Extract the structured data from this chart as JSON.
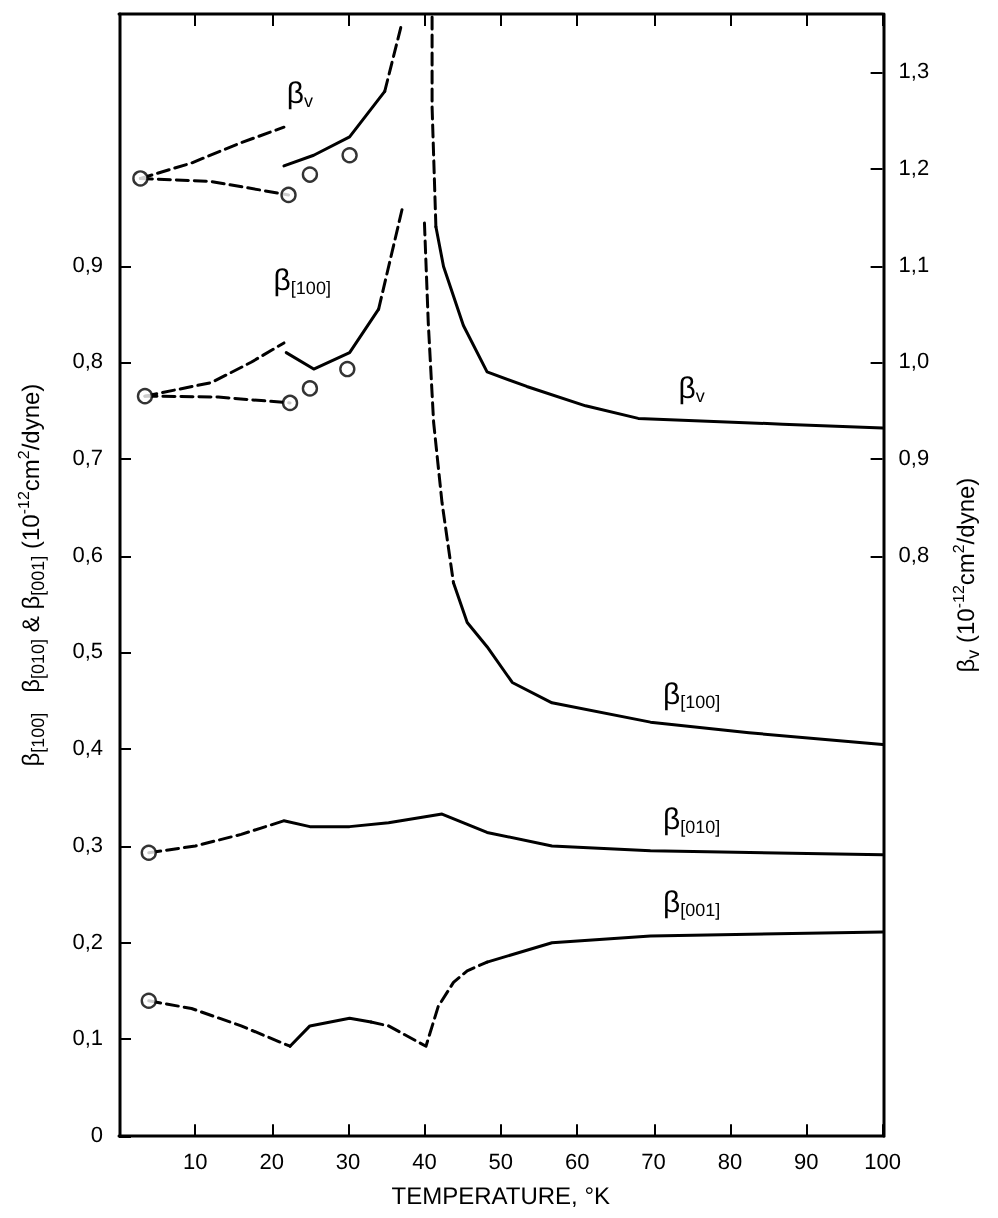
{
  "chart_data": {
    "type": "line",
    "xlabel": "TEMPERATURE, °K",
    "ylabel": "β$_{[100]}$   β$_{[010]}$ & β$_{[001]}$ (10$^{-12}$cm$^{2}$/dyne)",
    "y2label": "β$_{v}$ (10$^{-12}$cm$^{2}$/dyne)",
    "xlim": [
      0,
      100
    ],
    "xticks": [
      10,
      20,
      30,
      40,
      50,
      60,
      70,
      80,
      90,
      100
    ],
    "ylim": [
      0,
      1.16
    ],
    "yticks": [
      0,
      {
        "value": 0.1,
        "label": "0,1"
      },
      {
        "value": 0.2,
        "label": "0,2"
      },
      {
        "value": 0.3,
        "label": "0,3"
      },
      {
        "value": 0.4,
        "label": "0,4"
      },
      {
        "value": 0.5,
        "label": "0,5"
      },
      {
        "value": 0.6,
        "label": "0,6"
      },
      {
        "value": 0.7,
        "label": "0,7"
      },
      {
        "value": 0.8,
        "label": "0,8"
      },
      {
        "value": 0.9,
        "label": "0,9"
      }
    ],
    "y2lim": [
      0.2,
      1.36
    ],
    "y2ticks": [
      {
        "value": 0.8,
        "label": "0,8"
      },
      {
        "value": 0.9,
        "label": "0,9"
      },
      {
        "value": 1.0,
        "label": "1,0"
      },
      {
        "value": 1.1,
        "label": "1,1"
      },
      {
        "value": 1.2,
        "label": "1,2"
      },
      {
        "value": 1.3,
        "label": "1,3"
      }
    ],
    "series": [
      {
        "axis": "y2",
        "color": "#000000",
        "line_style": "dashed",
        "x": [
          2.8,
          9.5,
          16,
          21.6
        ],
        "values": [
          1.19,
          1.206,
          1.227,
          1.243
        ]
      },
      {
        "axis": "y2",
        "color": "#000000",
        "line_style": "dashed",
        "x": [
          2.8,
          12,
          22.2
        ],
        "values": [
          1.19,
          1.187,
          1.173
        ]
      },
      {
        "name": "β$_{v}$",
        "axis": "y2",
        "color": "#000000",
        "line_style": "solid",
        "x": [
          21.6,
          25.5,
          30.2,
          34.8
        ],
        "values": [
          1.203,
          1.214,
          1.233,
          1.28
        ]
      },
      {
        "axis": "y2",
        "color": "#000000",
        "line_style": "dashed",
        "x": [
          34.8,
          36.9
        ],
        "values": [
          1.28,
          1.346
        ]
      },
      {
        "axis": "y2",
        "color": "#000000",
        "line_style": "dashed",
        "x": [
          41,
          41,
          41.5
        ],
        "values": [
          1.357,
          1.264,
          1.14
        ]
      },
      {
        "name": "β$_{v}$",
        "axis": "y2",
        "color": "#000000",
        "line_style": "solid",
        "x": [
          41.5,
          42.5,
          45.1,
          48.2,
          53.4,
          61.1,
          68,
          86.9,
          100
        ],
        "values": [
          1.14,
          1.099,
          1.038,
          0.99,
          0.975,
          0.955,
          0.942,
          0.936,
          0.932
        ]
      },
      {
        "type": "scatter",
        "axis": "y2",
        "color": "#000000",
        "marker": "circle",
        "x": [
          2.8,
          22.2,
          25,
          30.2
        ],
        "values": [
          1.19,
          1.173,
          1.194,
          1.214
        ]
      },
      {
        "color": "#000000",
        "line_style": "dashed",
        "x": [
          3.4,
          12.1,
          17.3,
          21.6
        ],
        "values": [
          0.765,
          0.779,
          0.8,
          0.82
        ]
      },
      {
        "color": "#000000",
        "line_style": "dashed",
        "x": [
          3.4,
          13,
          22.4
        ],
        "values": [
          0.765,
          0.764,
          0.758
        ]
      },
      {
        "name": "β$_{[100]}$",
        "color": "#000000",
        "line_style": "solid",
        "x": [
          21.9,
          25.5,
          30.2,
          34
        ],
        "values": [
          0.81,
          0.793,
          0.81,
          0.855
        ]
      },
      {
        "color": "#000000",
        "line_style": "dashed",
        "x": [
          34,
          37.1
        ],
        "values": [
          0.855,
          0.959
        ]
      },
      {
        "color": "#000000",
        "line_style": "dashed",
        "x": [
          40,
          40.5,
          41.2,
          42.3,
          43.8
        ],
        "values": [
          0.944,
          0.841,
          0.738,
          0.655,
          0.572
        ]
      },
      {
        "name": "β$_{[100]}$",
        "color": "#000000",
        "line_style": "solid",
        "x": [
          43.8,
          45.6,
          48.2,
          51.5,
          56.7,
          69.6,
          82.5,
          100
        ],
        "values": [
          0.572,
          0.531,
          0.506,
          0.469,
          0.448,
          0.428,
          0.417,
          0.405
        ]
      },
      {
        "type": "scatter",
        "color": "#000000",
        "marker": "circle",
        "x": [
          3.4,
          22.4,
          25,
          29.9
        ],
        "values": [
          0.765,
          0.758,
          0.773,
          0.793
        ]
      },
      {
        "color": "#000000",
        "line_style": "dashed",
        "x": [
          3.9,
          10,
          16,
          21.6
        ],
        "values": [
          0.293,
          0.3,
          0.312,
          0.326
        ]
      },
      {
        "name": "β$_{[010]}$",
        "color": "#000000",
        "line_style": "solid",
        "x": [
          21.6,
          25,
          30.2,
          35.3,
          42.3,
          48.2,
          56.7,
          69.6,
          100
        ],
        "values": [
          0.326,
          0.32,
          0.32,
          0.324,
          0.333,
          0.314,
          0.3,
          0.295,
          0.291
        ]
      },
      {
        "type": "scatter",
        "color": "#000000",
        "marker": "circle",
        "x": [
          3.9
        ],
        "values": [
          0.293
        ]
      },
      {
        "color": "#000000",
        "line_style": "dashed",
        "x": [
          3.9,
          9.5,
          16,
          22.4
        ],
        "values": [
          0.14,
          0.132,
          0.114,
          0.093
        ]
      },
      {
        "color": "#000000",
        "line_style": "solid",
        "x": [
          22.4,
          25,
          30.2,
          33
        ],
        "values": [
          0.093,
          0.114,
          0.122,
          0.118
        ]
      },
      {
        "color": "#000000",
        "line_style": "dashed",
        "x": [
          33,
          35.3,
          40.2,
          41.8,
          43.8,
          45.6,
          48.2
        ],
        "values": [
          0.118,
          0.114,
          0.093,
          0.134,
          0.159,
          0.171,
          0.18
        ]
      },
      {
        "name": "β$_{[001]}$",
        "color": "#000000",
        "line_style": "solid",
        "x": [
          48.2,
          56.7,
          69.6,
          100
        ],
        "values": [
          0.18,
          0.2,
          0.207,
          0.211
        ]
      },
      {
        "type": "scatter",
        "color": "#000000",
        "marker": "circle",
        "x": [
          3.9
        ],
        "values": [
          0.14
        ]
      }
    ]
  }
}
